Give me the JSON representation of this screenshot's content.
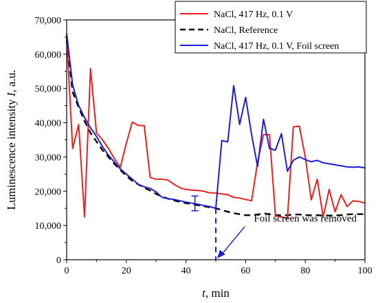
{
  "chart_data": {
    "type": "line",
    "xlabel_var": "t",
    "xlabel_unit": ", min",
    "ylabel_text": "Luminescence intensity ",
    "ylabel_var": "I",
    "ylabel_unit": ", a.u.",
    "xlim": [
      0,
      100
    ],
    "ylim": [
      0,
      70000
    ],
    "x_ticks": [
      0,
      20,
      40,
      60,
      80,
      100
    ],
    "x_tick_labels": [
      "0",
      "20",
      "40",
      "60",
      "80",
      "100"
    ],
    "y_ticks": [
      0,
      10000,
      20000,
      30000,
      40000,
      50000,
      60000,
      70000
    ],
    "y_tick_labels": [
      "0",
      "10,000",
      "20,000",
      "30,000",
      "40,000",
      "50,000",
      "60,000",
      "70,000"
    ],
    "legend_position": "top-right",
    "series": [
      {
        "name": "NaCl, 417 Hz, 0.1 V",
        "color": "#e8201e",
        "style": "solid",
        "x": [
          0,
          2,
          4,
          6,
          8,
          10,
          12,
          14,
          16,
          18,
          20,
          22,
          24,
          26,
          28,
          30,
          32,
          34,
          36,
          38,
          40,
          42,
          44,
          46,
          48,
          50,
          52,
          54,
          56,
          58,
          60,
          62,
          64,
          66,
          68,
          70,
          72,
          74,
          76,
          78,
          80,
          82,
          84,
          86,
          88,
          90,
          92,
          94,
          96,
          98,
          100
        ],
        "y": [
          65000,
          32500,
          39500,
          12500,
          55800,
          37000,
          35000,
          32500,
          29500,
          27000,
          34000,
          40200,
          39200,
          39200,
          24000,
          23500,
          23500,
          23200,
          22000,
          21000,
          20500,
          20300,
          20200,
          20000,
          19500,
          19500,
          19200,
          19000,
          18200,
          18000,
          17600,
          17200,
          28500,
          36500,
          36500,
          12800,
          12500,
          12000,
          38800,
          39000,
          30000,
          17500,
          23500,
          12500,
          20500,
          14000,
          19000,
          15500,
          17200,
          17000,
          16500
        ]
      },
      {
        "name": "NaCl, Reference",
        "color": "#000000",
        "style": "dashed",
        "x": [
          0,
          2,
          4,
          6,
          8,
          10,
          12,
          14,
          16,
          18,
          20,
          22,
          24,
          26,
          28,
          30,
          32,
          34,
          36,
          38,
          40,
          42,
          44,
          46,
          48,
          50,
          52,
          54,
          56,
          58,
          60,
          62,
          64,
          66,
          68,
          70,
          72,
          74,
          76,
          78,
          80,
          82,
          84,
          86,
          88,
          90,
          92,
          94,
          96,
          98,
          100
        ],
        "y": [
          64000,
          49000,
          44500,
          40500,
          37000,
          34500,
          32000,
          30000,
          28000,
          26200,
          24500,
          23000,
          22000,
          21000,
          20200,
          19200,
          18400,
          17800,
          17300,
          16900,
          16500,
          16200,
          15900,
          15600,
          15300,
          15000,
          14500,
          14000,
          13600,
          13300,
          13000,
          13000,
          13200,
          13500,
          13300,
          13000,
          13000,
          13000,
          13200,
          13200,
          13000,
          13000,
          13000,
          12900,
          12900,
          12900,
          13000,
          13200,
          13300,
          13300,
          13300
        ]
      },
      {
        "name": "NaCl, 417 Hz, 0.1 V, Foil screen",
        "color": "#1c1cd4",
        "style": "solid",
        "x": [
          0,
          2,
          4,
          6,
          8,
          10,
          12,
          14,
          16,
          18,
          20,
          22,
          24,
          26,
          28,
          30,
          32,
          34,
          36,
          38,
          40,
          42,
          44,
          46,
          48,
          50,
          52,
          54,
          56,
          58,
          60,
          62,
          64,
          66,
          68,
          70,
          72,
          74,
          76,
          78,
          80,
          82,
          84,
          86,
          88,
          90,
          92,
          94,
          96,
          98,
          100
        ],
        "y": [
          66000,
          51000,
          45000,
          41500,
          38500,
          36000,
          33000,
          30500,
          28500,
          26500,
          25000,
          23500,
          22000,
          21300,
          20800,
          19800,
          18200,
          17800,
          17600,
          17200,
          16800,
          16500,
          16200,
          15800,
          15500,
          15000,
          34800,
          34400,
          50800,
          39500,
          47400,
          36500,
          27200,
          41000,
          32500,
          32000,
          36800,
          25800,
          29000,
          30000,
          29200,
          28600,
          29000,
          28300,
          28000,
          27700,
          27400,
          27100,
          27000,
          27100,
          26800
        ]
      }
    ],
    "error_bar": {
      "x": 43,
      "y": 16500,
      "lower": 14300,
      "upper": 18600,
      "color": "#1c1cd4"
    },
    "vline": {
      "x": 50,
      "y_top": 15000,
      "color": "#1c1cd4"
    },
    "annotation": {
      "text": "Foil screen was removed",
      "arrow_to_x": 50,
      "arrow_to_y": 0,
      "text_x": 80,
      "text_y": 10500
    }
  }
}
